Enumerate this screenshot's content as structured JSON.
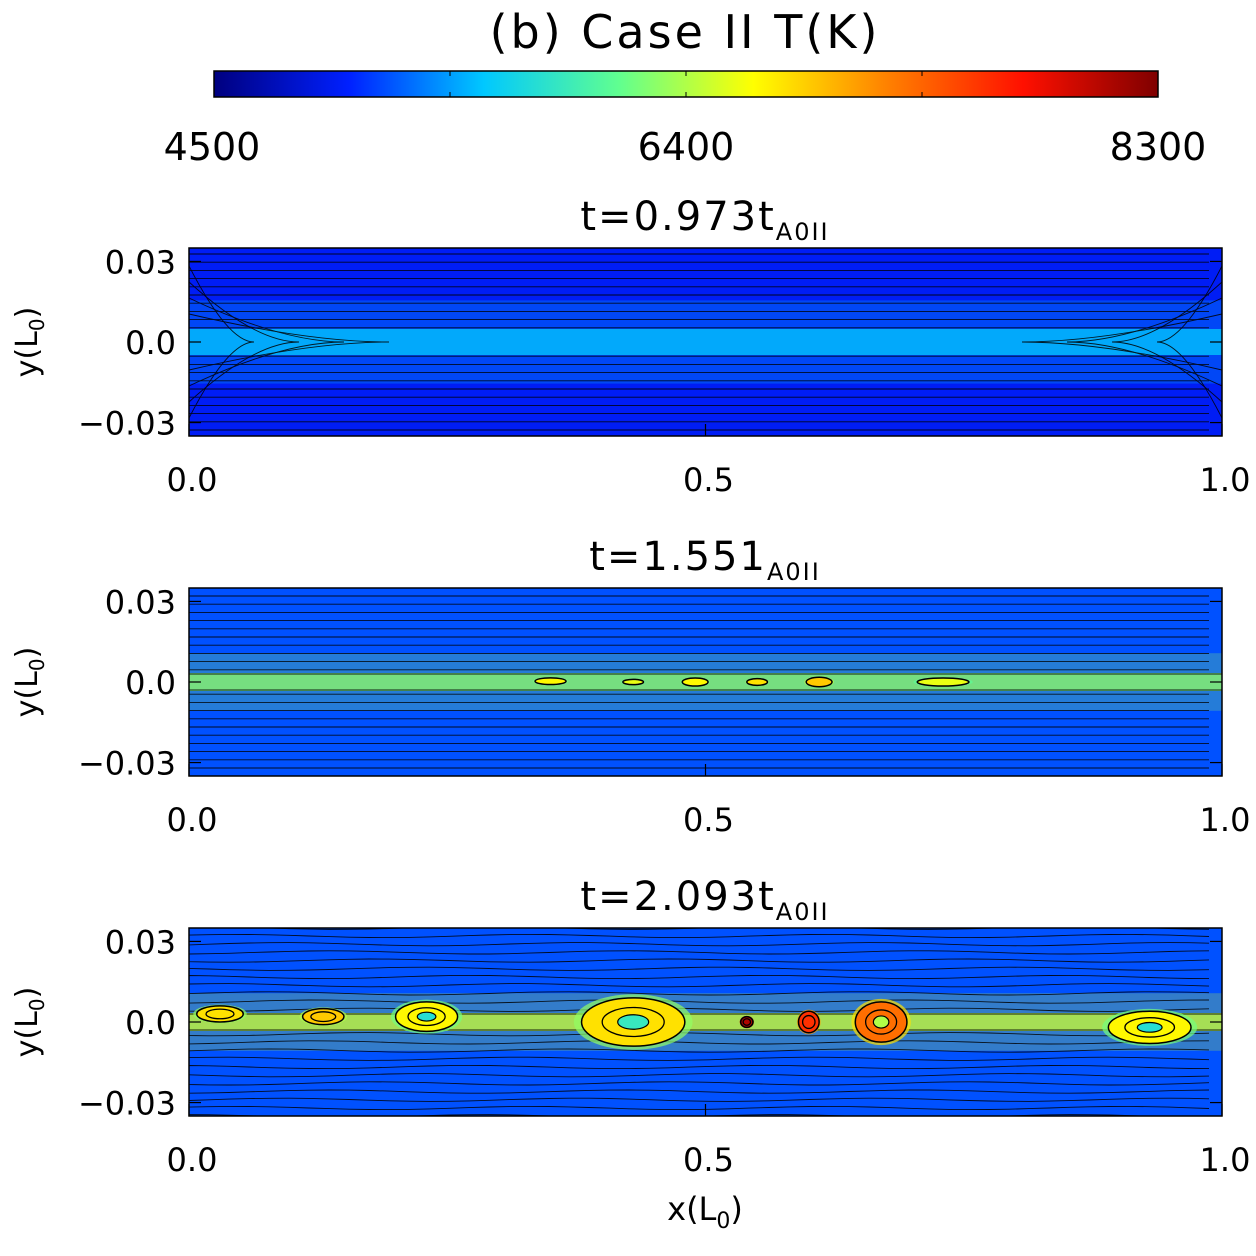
{
  "chart_data": {
    "type": "heatmap",
    "title": "(b) Case II T(K)",
    "colorbar": {
      "label": "T(K)",
      "range": [
        4500,
        8300
      ],
      "ticks": [
        "4500",
        "6400",
        "8300"
      ],
      "colormap": [
        "#00007f",
        "#0020ff",
        "#00c8ff",
        "#60ff90",
        "#ffff00",
        "#ff8000",
        "#ff1000",
        "#7f0000"
      ]
    },
    "panels": [
      {
        "title_main": "t=0.973t",
        "title_sub": "A0II",
        "ylabel_main": "y(L",
        "ylabel_sub": "0",
        "ylabel_close": ")",
        "xlim": [
          0.0,
          1.0
        ],
        "ylim": [
          -0.035,
          0.035
        ],
        "yticks": [
          "0.03",
          "0.0",
          "−0.03"
        ],
        "xticks": [
          "0.0",
          "0.5",
          "1.0"
        ],
        "background_temperature": 5000,
        "sheet_temperature": 5600,
        "blobs": []
      },
      {
        "title_main": "t=1.551",
        "title_sub": "A0II",
        "ylabel_main": "y(L",
        "ylabel_sub": "0",
        "ylabel_close": ")",
        "xlim": [
          0.0,
          1.0
        ],
        "ylim": [
          -0.035,
          0.035
        ],
        "yticks": [
          "0.03",
          "0.0",
          "−0.03"
        ],
        "xticks": [
          "0.0",
          "0.5",
          "1.0"
        ],
        "background_temperature": 5200,
        "sheet_temperature": 6300,
        "blobs": [
          {
            "x": 0.35,
            "y": 0.0003,
            "width": 0.03,
            "height": 0.0025,
            "temperature": 6700
          },
          {
            "x": 0.43,
            "y": 0.0,
            "width": 0.02,
            "height": 0.002,
            "temperature": 6600
          },
          {
            "x": 0.49,
            "y": 0.0,
            "width": 0.025,
            "height": 0.003,
            "temperature": 6700
          },
          {
            "x": 0.55,
            "y": 0.0,
            "width": 0.02,
            "height": 0.0025,
            "temperature": 6800
          },
          {
            "x": 0.61,
            "y": 0.0,
            "width": 0.025,
            "height": 0.0035,
            "temperature": 6900
          },
          {
            "x": 0.73,
            "y": 0.0,
            "width": 0.05,
            "height": 0.003,
            "temperature": 6600
          }
        ]
      },
      {
        "title_main": "t=2.093t",
        "title_sub": "A0II",
        "ylabel_main": "y(L",
        "ylabel_sub": "0",
        "ylabel_close": ")",
        "xlabel_main": "x(L",
        "xlabel_sub": "0",
        "xlabel_close": ")",
        "xlim": [
          0.0,
          1.0
        ],
        "ylim": [
          -0.035,
          0.035
        ],
        "yticks": [
          "0.03",
          "0.0",
          "−0.03"
        ],
        "xticks": [
          "0.0",
          "0.5",
          "1.0"
        ],
        "background_temperature": 5200,
        "sheet_temperature": 6500,
        "blobs": [
          {
            "x": 0.03,
            "y": 0.003,
            "width": 0.045,
            "height": 0.006,
            "temperature": 6800
          },
          {
            "x": 0.13,
            "y": 0.002,
            "width": 0.04,
            "height": 0.006,
            "temperature": 6900
          },
          {
            "x": 0.23,
            "y": 0.002,
            "width": 0.06,
            "height": 0.011,
            "temperature": 6700
          },
          {
            "x": 0.43,
            "y": 0.0,
            "width": 0.1,
            "height": 0.018,
            "temperature": 6800
          },
          {
            "x": 0.54,
            "y": 0.0,
            "width": 0.012,
            "height": 0.004,
            "temperature": 8100
          },
          {
            "x": 0.6,
            "y": 0.0,
            "width": 0.02,
            "height": 0.008,
            "temperature": 7600
          },
          {
            "x": 0.67,
            "y": 0.0,
            "width": 0.05,
            "height": 0.015,
            "temperature": 7300
          },
          {
            "x": 0.93,
            "y": -0.002,
            "width": 0.08,
            "height": 0.012,
            "temperature": 6700
          }
        ]
      }
    ]
  }
}
